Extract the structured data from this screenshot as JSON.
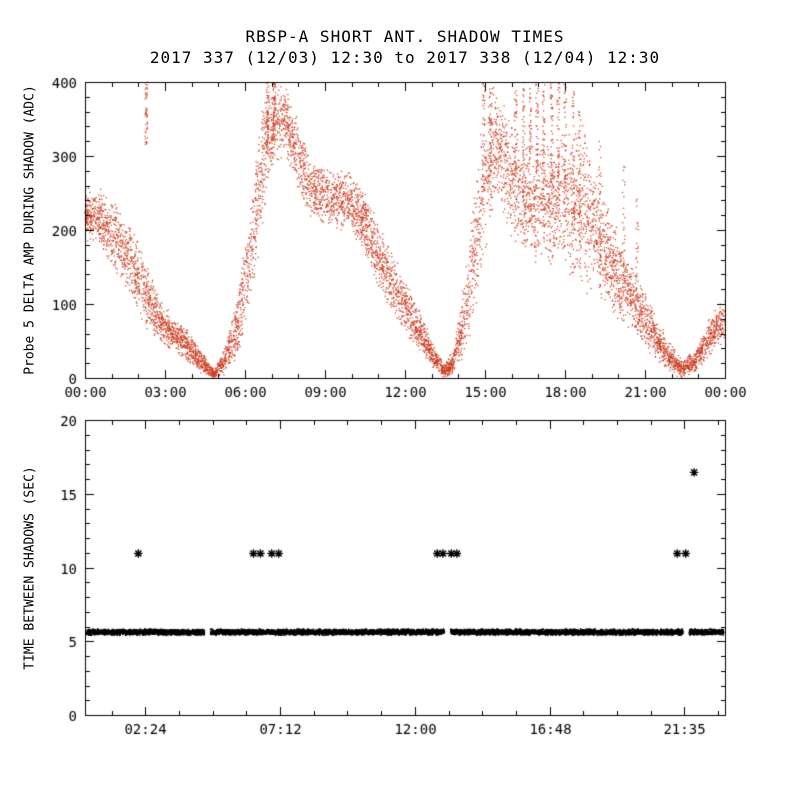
{
  "figure": {
    "background": "#ffffff",
    "axis_color": "#000000"
  },
  "chart_data": [
    {
      "type": "scatter",
      "panel": "top",
      "title": "RBSP-A SHORT ANT. SHADOW TIMES",
      "subtitle": "2017 337 (12/03) 12:30 to 2017 338 (12/04) 12:30",
      "xlabel": "",
      "ylabel": "Probe 5 DELTA AMP DURING SHADOW (ADC)",
      "xlim": [
        0,
        24
      ],
      "ylim": [
        0,
        400
      ],
      "yticks": [
        0,
        100,
        200,
        300,
        400
      ],
      "ytick_labels": [
        "0",
        "100",
        "200",
        "300",
        "400"
      ],
      "y_minor_step": 20,
      "xticks": [
        0,
        3,
        6,
        9,
        12,
        15,
        18,
        21,
        24
      ],
      "xtick_labels": [
        "00:00",
        "03:00",
        "06:00",
        "09:00",
        "12:00",
        "15:00",
        "18:00",
        "21:00",
        "00:00"
      ],
      "x_minor_step": 1,
      "point_color": "#cb3a1f",
      "marker": "dot",
      "cloud_points": 7500,
      "cloud_envelope": [
        [
          0.0,
          185,
          262
        ],
        [
          0.5,
          175,
          258
        ],
        [
          1.0,
          150,
          245
        ],
        [
          1.6,
          112,
          215
        ],
        [
          2.2,
          72,
          172
        ],
        [
          2.8,
          45,
          110
        ],
        [
          3.4,
          32,
          80
        ],
        [
          4.0,
          15,
          62
        ],
        [
          4.5,
          2,
          30
        ],
        [
          4.85,
          0,
          12
        ],
        [
          5.2,
          2,
          40
        ],
        [
          5.7,
          25,
          110
        ],
        [
          6.2,
          90,
          240
        ],
        [
          6.6,
          180,
          370
        ],
        [
          7.0,
          280,
          400
        ],
        [
          7.5,
          300,
          400
        ],
        [
          8.0,
          245,
          350
        ],
        [
          8.5,
          212,
          295
        ],
        [
          9.2,
          200,
          285
        ],
        [
          10.0,
          195,
          278
        ],
        [
          10.6,
          155,
          248
        ],
        [
          11.2,
          105,
          195
        ],
        [
          11.8,
          70,
          150
        ],
        [
          12.4,
          40,
          105
        ],
        [
          13.0,
          12,
          55
        ],
        [
          13.45,
          0,
          18
        ],
        [
          13.8,
          2,
          40
        ],
        [
          14.2,
          25,
          130
        ],
        [
          14.6,
          75,
          255
        ],
        [
          15.0,
          160,
          390
        ],
        [
          15.4,
          240,
          400
        ],
        [
          15.9,
          195,
          360
        ],
        [
          16.4,
          165,
          330
        ],
        [
          17.0,
          150,
          320
        ],
        [
          17.6,
          150,
          320
        ],
        [
          18.1,
          135,
          340
        ],
        [
          18.6,
          118,
          350
        ],
        [
          19.1,
          105,
          300
        ],
        [
          19.6,
          92,
          240
        ],
        [
          20.1,
          72,
          190
        ],
        [
          20.7,
          52,
          140
        ],
        [
          21.3,
          28,
          95
        ],
        [
          21.9,
          6,
          50
        ],
        [
          22.4,
          0,
          26
        ],
        [
          22.9,
          6,
          38
        ],
        [
          23.4,
          28,
          80
        ],
        [
          24.0,
          48,
          115
        ]
      ],
      "streaks": [
        [
          2.3,
          315,
          400,
          45
        ],
        [
          6.85,
          300,
          400,
          40
        ],
        [
          7.1,
          320,
          400,
          40
        ],
        [
          14.95,
          250,
          400,
          40
        ],
        [
          15.2,
          270,
          400,
          40
        ],
        [
          16.15,
          200,
          400,
          45
        ],
        [
          16.45,
          230,
          400,
          45
        ],
        [
          16.7,
          210,
          400,
          45
        ],
        [
          16.95,
          250,
          400,
          45
        ],
        [
          17.2,
          230,
          400,
          45
        ],
        [
          17.5,
          260,
          400,
          45
        ],
        [
          17.75,
          235,
          400,
          45
        ],
        [
          18.0,
          215,
          398,
          40
        ],
        [
          18.3,
          195,
          390,
          40
        ],
        [
          18.55,
          175,
          360,
          35
        ],
        [
          19.3,
          120,
          320,
          35
        ],
        [
          20.2,
          90,
          295,
          30
        ],
        [
          20.7,
          65,
          245,
          28
        ]
      ]
    },
    {
      "type": "scatter",
      "panel": "bottom",
      "title": "",
      "xlabel": "",
      "ylabel": "TIME BETWEEN SHADOWS (SEC)",
      "xlim": [
        0.25,
        23.05
      ],
      "ylim": [
        0,
        20
      ],
      "yticks": [
        0,
        5,
        10,
        15,
        20
      ],
      "ytick_labels": [
        "0",
        "5",
        "10",
        "15",
        "20"
      ],
      "y_minor_step": 1,
      "xticks": [
        2.4,
        7.2,
        12.0,
        16.8,
        21.5833
      ],
      "xtick_labels": [
        "02:24",
        "07:12",
        "12:00",
        "16:48",
        "21:35"
      ],
      "x_minor_step": 1.2,
      "point_color": "#000000",
      "marker": "asterisk",
      "band": {
        "y": 5.62,
        "half_height": 0.22,
        "points_per_hour": 300,
        "segments": [
          [
            0.3,
            4.5
          ],
          [
            4.72,
            13.05
          ],
          [
            13.28,
            21.55
          ],
          [
            21.78,
            23.0
          ]
        ]
      },
      "outliers": [
        {
          "x": 2.15,
          "y": 10.95
        },
        {
          "x": 6.25,
          "y": 10.95
        },
        {
          "x": 6.5,
          "y": 10.95
        },
        {
          "x": 6.9,
          "y": 10.95
        },
        {
          "x": 7.15,
          "y": 10.95
        },
        {
          "x": 12.8,
          "y": 10.95
        },
        {
          "x": 13.0,
          "y": 10.95
        },
        {
          "x": 13.3,
          "y": 10.95
        },
        {
          "x": 13.5,
          "y": 10.95
        },
        {
          "x": 21.35,
          "y": 10.95
        },
        {
          "x": 21.65,
          "y": 10.95
        },
        {
          "x": 21.95,
          "y": 16.45
        }
      ]
    }
  ]
}
